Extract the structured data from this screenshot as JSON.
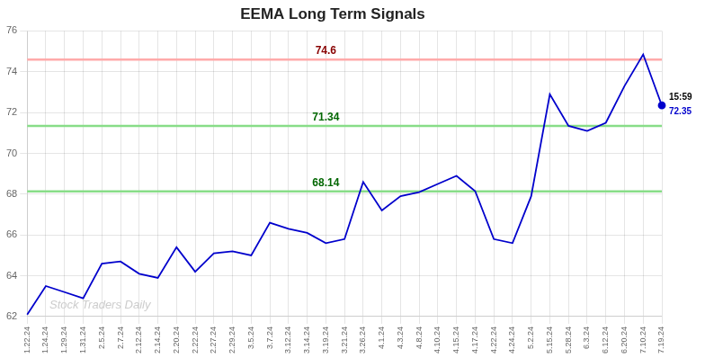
{
  "chart_data": {
    "type": "line",
    "title": "EEMA Long Term Signals",
    "categories": [
      "1.22.24",
      "1.24.24",
      "1.29.24",
      "1.31.24",
      "2.5.24",
      "2.7.24",
      "2.12.24",
      "2.14.24",
      "2.20.24",
      "2.22.24",
      "2.27.24",
      "2.29.24",
      "3.5.24",
      "3.7.24",
      "3.12.24",
      "3.14.24",
      "3.19.24",
      "3.21.24",
      "3.26.24",
      "4.1.24",
      "4.3.24",
      "4.8.24",
      "4.10.24",
      "4.15.24",
      "4.17.24",
      "4.22.24",
      "4.24.24",
      "5.2.24",
      "5.15.24",
      "5.28.24",
      "6.3.24",
      "6.12.24",
      "6.20.24",
      "7.10.24",
      "7.19.24"
    ],
    "values": [
      62.1,
      63.5,
      63.2,
      62.9,
      64.6,
      64.7,
      64.1,
      63.9,
      65.4,
      64.2,
      65.1,
      65.2,
      65.0,
      66.6,
      66.3,
      66.1,
      65.6,
      65.8,
      68.6,
      67.2,
      67.9,
      68.1,
      68.5,
      68.9,
      68.15,
      65.8,
      65.6,
      67.9,
      72.9,
      71.35,
      71.1,
      71.5,
      73.3,
      74.85,
      72.35
    ],
    "color": "#0000cc",
    "ylim": [
      62,
      76
    ],
    "yticks": [
      62,
      64,
      66,
      68,
      70,
      72,
      74,
      76
    ],
    "grid": true,
    "annotations": [
      {
        "type": "hline",
        "value": 74.6,
        "label": "74.6",
        "color": "#ffaaaa",
        "label_color": "#880000"
      },
      {
        "type": "hline",
        "value": 71.34,
        "label": "71.34",
        "color": "#88dd88",
        "label_color": "#006600"
      },
      {
        "type": "hline",
        "value": 68.14,
        "label": "68.14",
        "color": "#88dd88",
        "label_color": "#006600"
      },
      {
        "type": "last_point",
        "text": "15:59",
        "color": "#000000"
      },
      {
        "type": "last_point",
        "text": "72.35",
        "color": "#0000cc"
      },
      {
        "type": "watermark",
        "text": "Stock Traders Daily",
        "color": "#cccccc"
      }
    ]
  }
}
